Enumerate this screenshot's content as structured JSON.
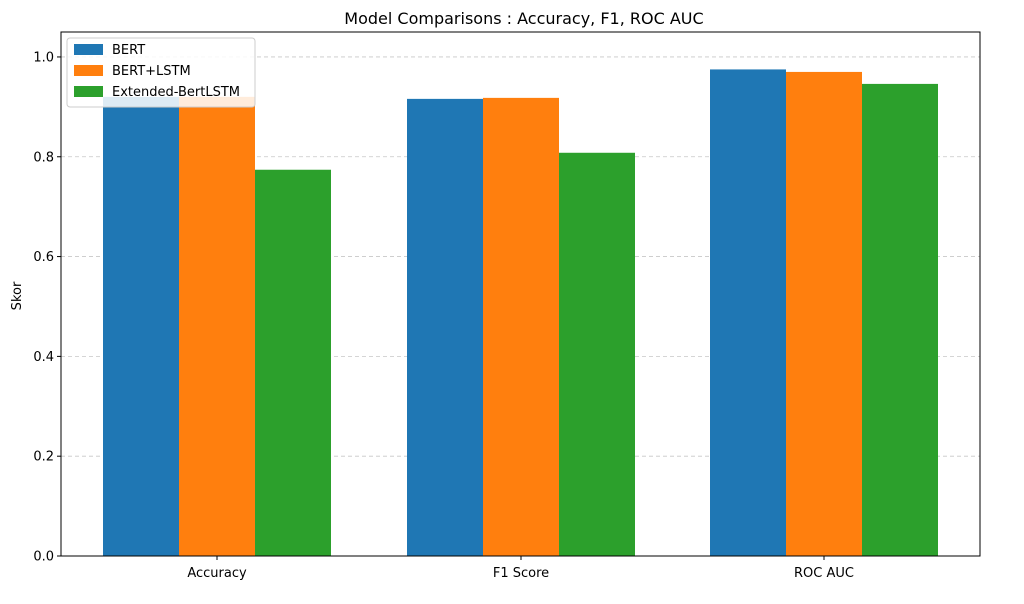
{
  "chart_data": {
    "type": "bar",
    "title": "Model Comparisons : Accuracy, F1, ROC AUC",
    "xlabel": "",
    "ylabel": "Skor",
    "categories": [
      "Accuracy",
      "F1 Score",
      "ROC AUC"
    ],
    "series": [
      {
        "name": "BERT",
        "color": "#1f77b4",
        "values": [
          0.92,
          0.916,
          0.975
        ]
      },
      {
        "name": "BERT+LSTM",
        "color": "#ff7f0e",
        "values": [
          0.92,
          0.918,
          0.97
        ]
      },
      {
        "name": "Extended-BertLSTM",
        "color": "#2ca02c",
        "values": [
          0.774,
          0.808,
          0.946
        ]
      }
    ],
    "ylim": [
      0,
      1.05
    ],
    "yticks": [
      "0.0",
      "0.2",
      "0.4",
      "0.6",
      "0.8",
      "1.0"
    ],
    "grid": "y-dashed",
    "legend_position": "top-left"
  }
}
